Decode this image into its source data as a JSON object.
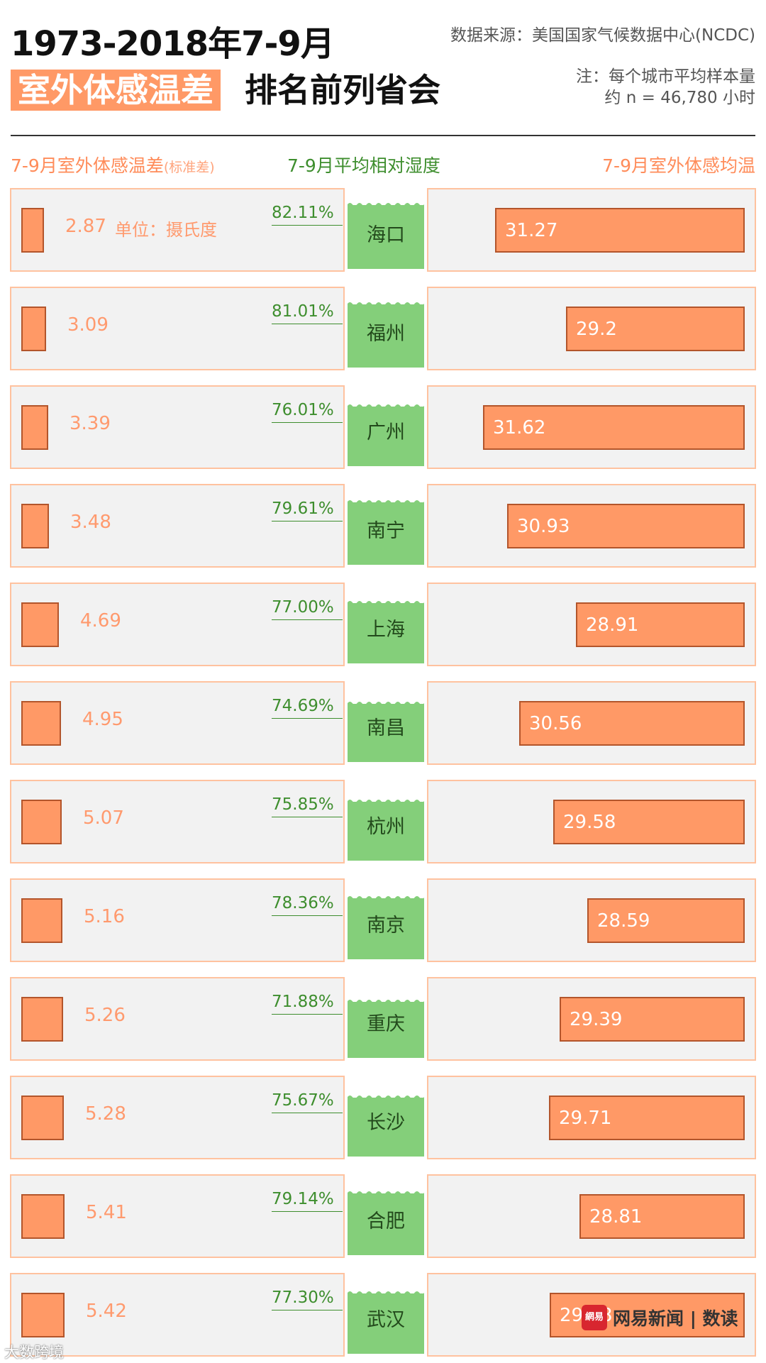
{
  "header": {
    "title_line1": "1973-2018年7-9月",
    "title_highlight": "室外体感温差",
    "title_rest": "排名前列省会",
    "source": "数据来源：美国国家气候数据中心(NCDC)",
    "note_line1": "注：每个城市平均样本量",
    "note_line2": "约 n = 46,780 小时"
  },
  "columns": {
    "left": "7-9月室外体感温差",
    "left_small": "(标准差)",
    "middle": "7-9月平均相对湿度",
    "right": "7-9月室外体感均温"
  },
  "unit_label": "单位：摄氏度",
  "colors": {
    "orange": "#ff9966",
    "orange_border": "#b3552b",
    "green": "#84cf7a",
    "green_text": "#3e8e2e"
  },
  "chart_data": {
    "type": "bar",
    "title": "1973-2018年7-9月室外体感温差排名前列省会",
    "categories": [
      "海口",
      "福州",
      "广州",
      "南宁",
      "上海",
      "南昌",
      "杭州",
      "南京",
      "重庆",
      "长沙",
      "合肥",
      "武汉"
    ],
    "series": [
      {
        "name": "7-9月室外体感温差(标准差)",
        "values": [
          2.87,
          3.09,
          3.39,
          3.48,
          4.69,
          4.95,
          5.07,
          5.16,
          5.26,
          5.28,
          5.41,
          5.42
        ],
        "labels": [
          "2.87",
          "3.09",
          "3.39",
          "3.48",
          "4.69",
          "4.95",
          "5.07",
          "5.16",
          "5.26",
          "5.28",
          "5.41",
          "5.42"
        ]
      },
      {
        "name": "7-9月平均相对湿度",
        "values": [
          82.11,
          81.01,
          76.01,
          79.61,
          77.0,
          74.69,
          75.85,
          78.36,
          71.88,
          75.67,
          79.14,
          77.3
        ],
        "labels": [
          "82.11%",
          "81.01%",
          "76.01%",
          "79.61%",
          "77.00%",
          "74.69%",
          "75.85%",
          "78.36%",
          "71.88%",
          "75.67%",
          "79.14%",
          "77.30%"
        ]
      },
      {
        "name": "7-9月室外体感均温",
        "values": [
          31.27,
          29.2,
          31.62,
          30.93,
          28.91,
          30.56,
          29.58,
          28.59,
          29.39,
          29.71,
          28.81,
          29.68
        ],
        "labels": [
          "31.27",
          "29.2",
          "31.62",
          "30.93",
          "28.91",
          "30.56",
          "29.58",
          "28.59",
          "29.39",
          "29.71",
          "28.81",
          "29.68"
        ]
      }
    ]
  },
  "logo": {
    "badge": "網易",
    "brand": "网易新闻 | 数读"
  },
  "watermark": "大数跨境"
}
